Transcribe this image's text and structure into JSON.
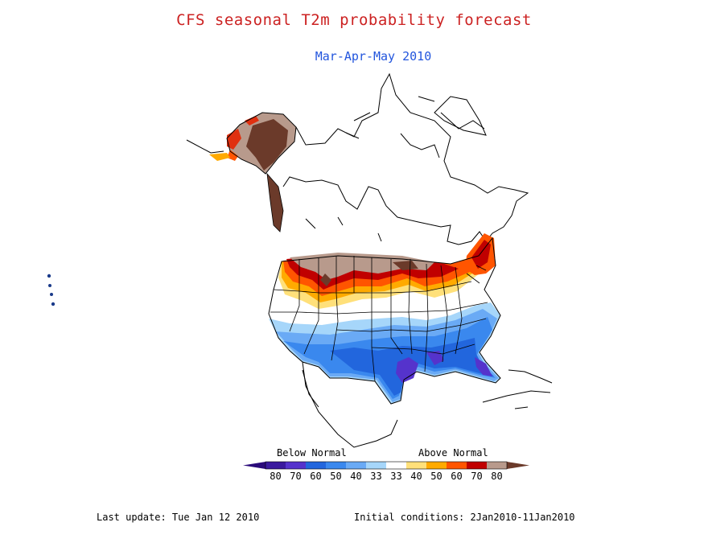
{
  "title": "CFS seasonal T2m probability forecast",
  "subtitle": "Mar-Apr-May 2010",
  "colors": {
    "title": "#cc2222",
    "subtitle": "#2255dd",
    "border": "#000000"
  },
  "legend": {
    "below_label": "Below Normal",
    "above_label": "Above Normal",
    "bins": [
      {
        "label": "80",
        "color": "#3a1a9e"
      },
      {
        "label": "70",
        "color": "#5533cc"
      },
      {
        "label": "60",
        "color": "#2266dd"
      },
      {
        "label": "50",
        "color": "#3a88ee"
      },
      {
        "label": "40",
        "color": "#6aaaf5"
      },
      {
        "label": "33",
        "color": "#a6d6fa"
      },
      {
        "label": "33",
        "color": "#ffffff"
      },
      {
        "label": "40",
        "color": "#ffe07a"
      },
      {
        "label": "50",
        "color": "#ffaa00"
      },
      {
        "label": "60",
        "color": "#ff5500"
      },
      {
        "label": "70",
        "color": "#c00000"
      },
      {
        "label": "80",
        "color": "#b89a8c"
      }
    ],
    "end_colors": {
      "low": "#2a0a7a",
      "high": "#6b3a2a"
    }
  },
  "footer": {
    "last_update": "Last update: Tue Jan 12 2010",
    "initial_conditions": "Initial conditions: 2Jan2010-11Jan2010"
  }
}
